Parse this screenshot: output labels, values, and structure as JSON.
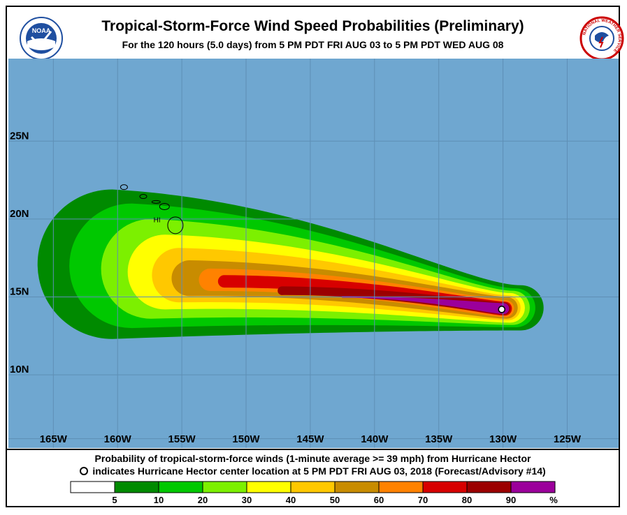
{
  "header": {
    "title": "Tropical-Storm-Force Wind Speed Probabilities (Preliminary)",
    "subtitle": "For the 120 hours (5.0 days) from 5 PM PDT FRI AUG 03 to 5 PM PDT WED AUG 08",
    "left_logo_text": "NOAA",
    "left_logo_icon": "noaa-logo-icon",
    "right_logo_icon": "nws-logo-icon",
    "right_logo_text": "NATIONAL WEATHER SERVICE"
  },
  "map": {
    "ocean_color": "#6fa7d0",
    "land_color": "#c0c0c0",
    "grid_color": "#5e8fb5",
    "lon_labels": [
      "165W",
      "160W",
      "155W",
      "150W",
      "145W",
      "140W",
      "135W",
      "130W",
      "125W"
    ],
    "lon_values": [
      -165,
      -160,
      -155,
      -150,
      -145,
      -140,
      -135,
      -130,
      -125
    ],
    "lat_labels": [
      "25N",
      "20N",
      "15N",
      "10N"
    ],
    "lat_values": [
      25,
      20,
      15,
      10
    ],
    "lon_range": [
      -168.5,
      -121
    ],
    "lat_range": [
      5.3,
      30.3
    ],
    "land_label": "HI",
    "storm_center": {
      "lon": -130.1,
      "lat": 14.2
    }
  },
  "caption": {
    "line1": "Probability of tropical-storm-force winds (1-minute average >= 39 mph) from Hurricane Hector",
    "line2": "indicates Hurricane Hector center location at 5 PM PDT FRI AUG 03, 2018 (Forecast/Advisory #14)"
  },
  "legend": {
    "bins": [
      {
        "color": "#ffffff"
      },
      {
        "color": "#008a00"
      },
      {
        "color": "#00c800"
      },
      {
        "color": "#7cf000"
      },
      {
        "color": "#ffff00"
      },
      {
        "color": "#ffc800"
      },
      {
        "color": "#c88c00"
      },
      {
        "color": "#ff8200"
      },
      {
        "color": "#d70000"
      },
      {
        "color": "#9b0000"
      },
      {
        "color": "#9b009b"
      }
    ],
    "labels": [
      "5",
      "10",
      "20",
      "30",
      "40",
      "50",
      "60",
      "70",
      "80",
      "90",
      "%"
    ]
  }
}
